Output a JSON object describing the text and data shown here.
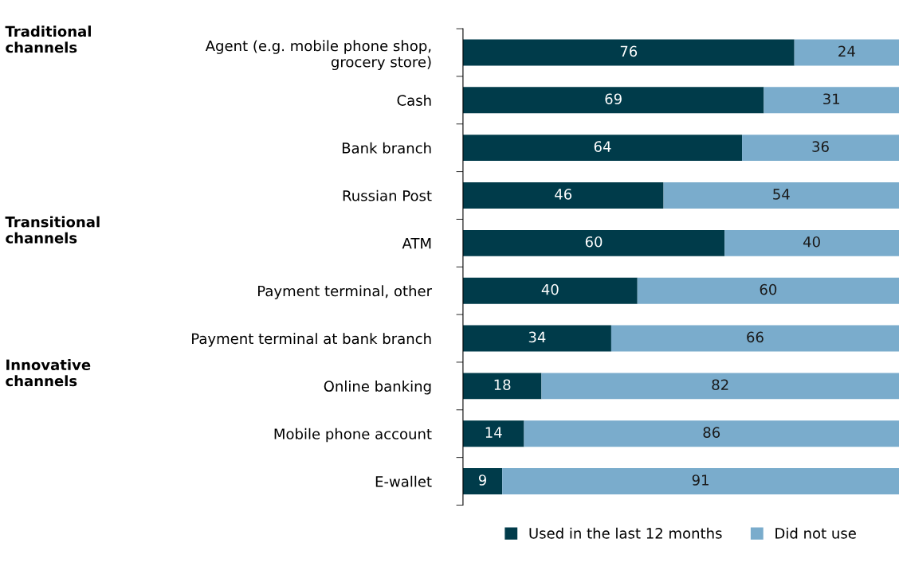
{
  "chart_data": {
    "type": "bar",
    "orientation": "horizontal",
    "stacked": true,
    "data_labels": true,
    "legend": "bottom",
    "grid": false,
    "tick_labels": "y",
    "categories": [
      "Agent (e.g. mobile phone shop,\ngrocery store)",
      "Cash",
      "Bank branch",
      "Russian Post",
      "ATM",
      "Payment terminal, other",
      "Payment terminal at bank branch",
      "Online banking",
      "Mobile phone account",
      "E-wallet"
    ],
    "series": [
      {
        "name": "Used in the last 12 months",
        "color": "#003b4a",
        "values": [
          76,
          69,
          64,
          46,
          60,
          40,
          34,
          18,
          14,
          9
        ]
      },
      {
        "name": "Did not use",
        "color": "#7aaccc",
        "values": [
          24,
          31,
          36,
          54,
          40,
          60,
          66,
          82,
          86,
          91
        ]
      }
    ],
    "annotations": [
      "Traditional\nchannels",
      "Transitional\nchannels",
      "Innovative\nchannels"
    ]
  }
}
